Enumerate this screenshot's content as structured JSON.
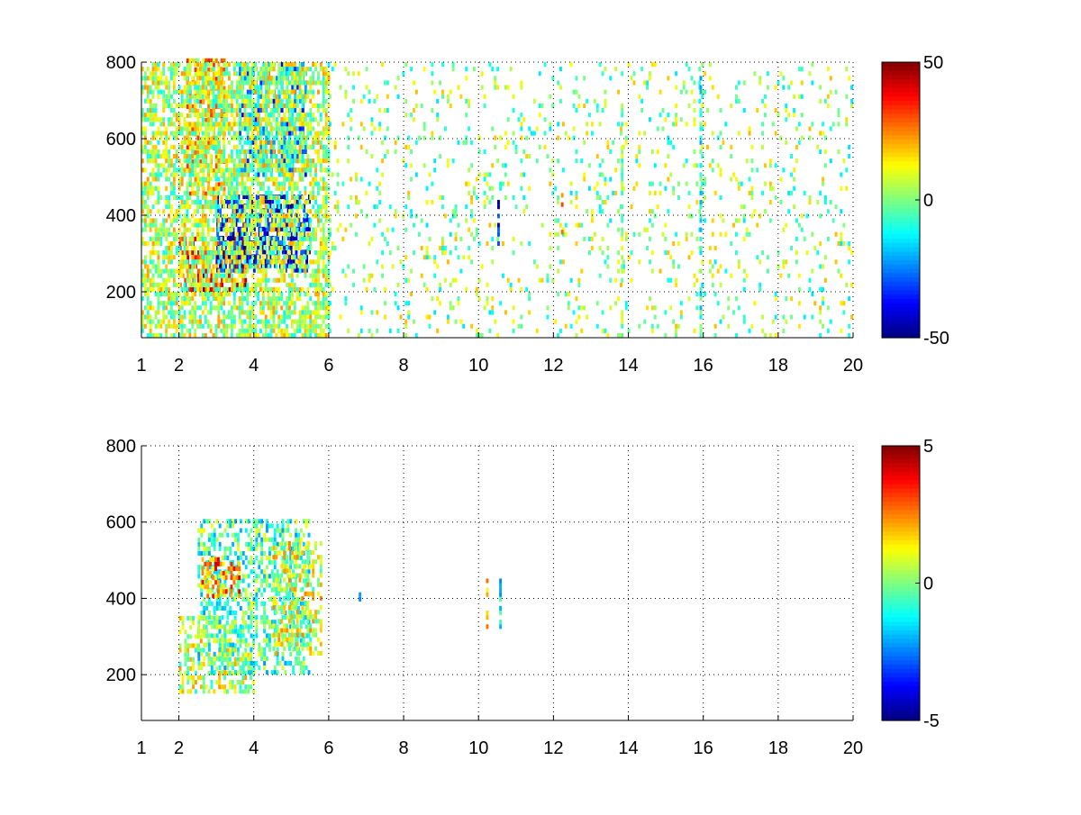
{
  "chart_data": [
    {
      "type": "heatmap",
      "title": "",
      "xlabel": "",
      "ylabel": "",
      "xlim": [
        1,
        20
      ],
      "ylim": [
        80,
        800
      ],
      "grid": true,
      "x_ticks": [
        1,
        2,
        4,
        6,
        8,
        10,
        12,
        14,
        16,
        18,
        20
      ],
      "y_ticks": [
        200,
        400,
        600,
        800
      ],
      "colormap": "jet",
      "colorbar": {
        "range": [
          -50,
          50
        ],
        "ticks": [
          50,
          0,
          -50
        ],
        "tick_labels": [
          "50",
          "0",
          "-50"
        ]
      },
      "regions": [
        {
          "x": [
            2.0,
            3.8
          ],
          "y": [
            200,
            340
          ],
          "value": 35
        },
        {
          "x": [
            3.0,
            5.5
          ],
          "y": [
            250,
            450
          ],
          "value": -40
        },
        {
          "x": [
            2.2,
            3.2
          ],
          "y": [
            450,
            800
          ],
          "value": 18
        },
        {
          "x": [
            3.6,
            5.4
          ],
          "y": [
            500,
            800
          ],
          "value": -20
        },
        {
          "x": [
            1.0,
            6.0
          ],
          "y": [
            80,
            800
          ],
          "value": 5
        },
        {
          "x": [
            6.0,
            20.0
          ],
          "y": [
            80,
            800
          ],
          "value": 2
        }
      ],
      "column_streaks": [
        {
          "x": 10.5,
          "y": [
            320,
            450
          ],
          "value": -35
        },
        {
          "x": 12.2,
          "y": [
            350,
            450
          ],
          "value": 20
        },
        {
          "x": 13.8,
          "y": [
            80,
            800
          ],
          "value": 0
        },
        {
          "x": 15.9,
          "y": [
            80,
            800
          ],
          "value": -10
        }
      ]
    },
    {
      "type": "heatmap",
      "title": "",
      "xlabel": "",
      "ylabel": "",
      "xlim": [
        1,
        20
      ],
      "ylim": [
        80,
        800
      ],
      "grid": true,
      "x_ticks": [
        1,
        2,
        4,
        6,
        8,
        10,
        12,
        14,
        16,
        18,
        20
      ],
      "y_ticks": [
        200,
        400,
        600,
        800
      ],
      "colormap": "jet",
      "colorbar": {
        "range": [
          -5,
          5
        ],
        "ticks": [
          5,
          0,
          -5
        ],
        "tick_labels": [
          "5",
          "0",
          "-5"
        ]
      },
      "regions": [
        {
          "x": [
            2.0,
            4.0
          ],
          "y": [
            150,
            350
          ],
          "value": 0.5
        },
        {
          "x": [
            2.5,
            5.5
          ],
          "y": [
            200,
            600
          ],
          "value": -0.5
        },
        {
          "x": [
            2.6,
            3.6
          ],
          "y": [
            400,
            500
          ],
          "value": 2.5
        },
        {
          "x": [
            4.5,
            5.8
          ],
          "y": [
            250,
            550
          ],
          "value": 0.8
        }
      ],
      "column_streaks": [
        {
          "x": 6.8,
          "y": [
            380,
            450
          ],
          "value": -3
        },
        {
          "x": 10.2,
          "y": [
            320,
            450
          ],
          "value": 2
        },
        {
          "x": 10.55,
          "y": [
            320,
            450
          ],
          "value": -1.5
        }
      ]
    }
  ]
}
